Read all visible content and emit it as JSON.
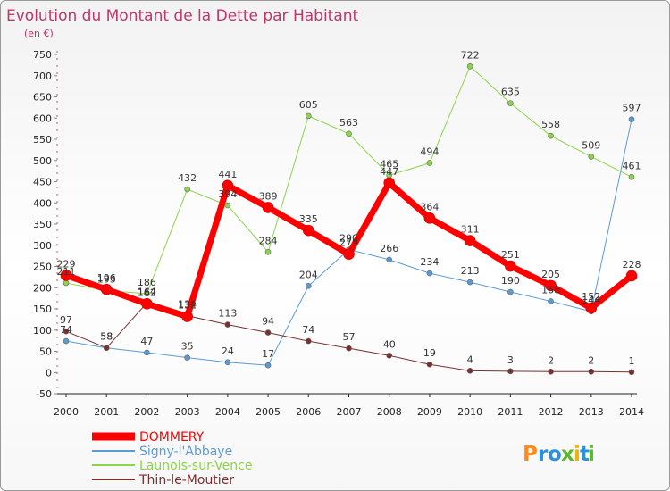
{
  "chart_data": {
    "type": "line",
    "title": "Evolution du Montant de la Dette par Habitant",
    "subtitle": "(en €)",
    "x": [
      "2000",
      "2001",
      "2002",
      "2003",
      "2004",
      "2005",
      "2006",
      "2007",
      "2008",
      "2009",
      "2010",
      "2011",
      "2012",
      "2013",
      "2014"
    ],
    "y_ticks": [
      -50,
      0,
      50,
      100,
      150,
      200,
      250,
      300,
      350,
      400,
      450,
      500,
      550,
      600,
      650,
      700,
      750
    ],
    "ylim": [
      -50,
      750
    ],
    "grid": false,
    "legend_position": "bottom-left",
    "series": [
      {
        "name": "DOMMERY",
        "color": "#ff0000",
        "labels": true,
        "bold": true,
        "values": [
          229,
          196,
          162,
          132,
          441,
          389,
          335,
          279,
          447,
          364,
          311,
          251,
          205,
          152,
          228
        ]
      },
      {
        "name": "Signy-l'Abbaye",
        "color": "#5b9bd5",
        "labels": true,
        "values": [
          74,
          58,
          47,
          35,
          24,
          17,
          204,
          290,
          266,
          234,
          213,
          190,
          168,
          144,
          597
        ]
      },
      {
        "name": "Launois-sur-Vence",
        "color": "#8cd44a",
        "labels": true,
        "values": [
          211,
          193,
          186,
          432,
          394,
          284,
          605,
          563,
          465,
          494,
          722,
          635,
          558,
          509,
          461
        ]
      },
      {
        "name": "Thin-le-Moutier",
        "color": "#7b2f2f",
        "labels": true,
        "values": [
          97,
          58,
          164,
          134,
          113,
          94,
          74,
          57,
          40,
          19,
          4,
          3,
          2,
          2,
          1
        ]
      }
    ]
  },
  "logo": {
    "letters": [
      "P",
      "r",
      "o",
      "x",
      "i",
      "t",
      "i"
    ]
  }
}
